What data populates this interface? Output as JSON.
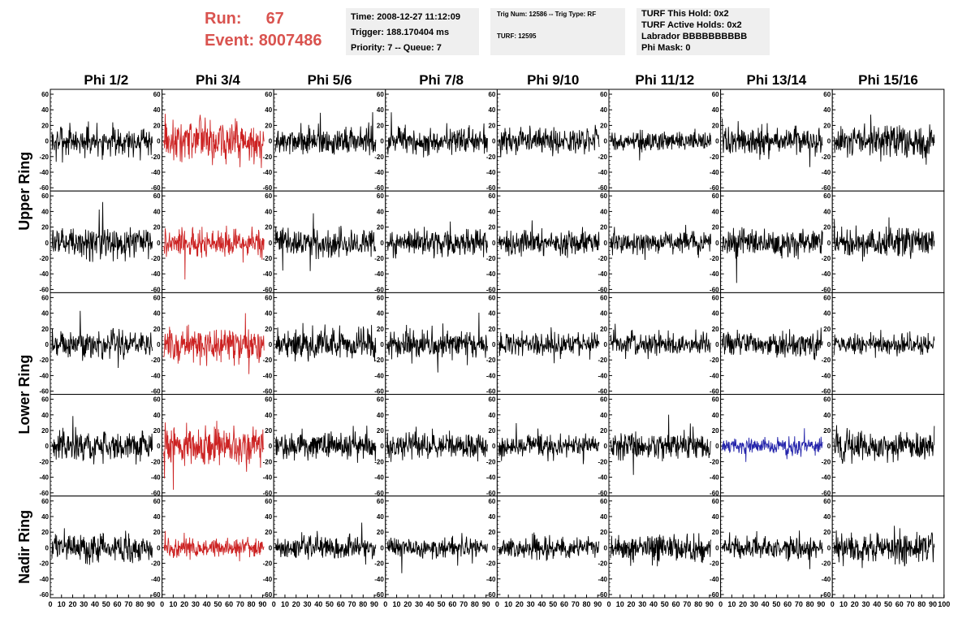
{
  "header": {
    "run_label": "Run:",
    "run_value": "67",
    "event_label": "Event:",
    "event_value": "8007486",
    "time": "Time: 2008-12-27 11:12:09",
    "trigger": "Trigger: 188.170404 ms",
    "priority": "Priority: 7 -- Queue: 7",
    "trig_num": "Trig Num: 12586 -- Trig Type: RF",
    "turf": "TURF: 12595",
    "turf_this_hold": "TURF This Hold: 0x2",
    "turf_active_holds": "TURF Active Holds: 0x2",
    "labrador": "Labrador BBBBBBBBBB",
    "phi_mask": "Phi Mask: 0"
  },
  "chart_data": {
    "type": "line",
    "columns": [
      "Phi 1/2",
      "Phi 3/4",
      "Phi 5/6",
      "Phi 7/8",
      "Phi 9/10",
      "Phi 11/12",
      "Phi 13/14",
      "Phi 15/16"
    ],
    "ring_labels": [
      {
        "text": "Upper Ring",
        "rows": [
          0,
          1
        ]
      },
      {
        "text": "Lower Ring",
        "rows": [
          2,
          3
        ]
      },
      {
        "text": "Nadir Ring",
        "rows": [
          4
        ]
      }
    ],
    "ylim": [
      -60,
      60
    ],
    "yticks": [
      -60,
      -40,
      -20,
      0,
      20,
      40,
      60
    ],
    "xlim": [
      0,
      100
    ],
    "xticks": [
      0,
      10,
      20,
      30,
      40,
      50,
      60,
      70,
      80,
      90,
      100
    ],
    "x_range": [
      0,
      90
    ],
    "colors": {
      "normal": "#000000",
      "triggered": "#cc2222",
      "highlight": "#2222aa"
    },
    "panels": [
      [
        {
          "c": "normal",
          "a": 18
        },
        {
          "c": "triggered",
          "a": 24
        },
        {
          "c": "normal",
          "a": 16
        },
        {
          "c": "normal",
          "a": 15
        },
        {
          "c": "normal",
          "a": 14
        },
        {
          "c": "normal",
          "a": 11
        },
        {
          "c": "normal",
          "a": 16
        },
        {
          "c": "normal",
          "a": 18
        }
      ],
      [
        {
          "c": "normal",
          "a": 17
        },
        {
          "c": "triggered",
          "a": 17
        },
        {
          "c": "normal",
          "a": 17
        },
        {
          "c": "normal",
          "a": 15
        },
        {
          "c": "normal",
          "a": 14
        },
        {
          "c": "normal",
          "a": 13
        },
        {
          "c": "normal",
          "a": 15
        },
        {
          "c": "normal",
          "a": 17
        }
      ],
      [
        {
          "c": "normal",
          "a": 15
        },
        {
          "c": "triggered",
          "a": 19
        },
        {
          "c": "normal",
          "a": 18
        },
        {
          "c": "normal",
          "a": 15
        },
        {
          "c": "normal",
          "a": 14
        },
        {
          "c": "normal",
          "a": 13
        },
        {
          "c": "normal",
          "a": 14
        },
        {
          "c": "normal",
          "a": 12
        }
      ],
      [
        {
          "c": "normal",
          "a": 18
        },
        {
          "c": "triggered",
          "a": 24
        },
        {
          "c": "normal",
          "a": 16
        },
        {
          "c": "normal",
          "a": 16
        },
        {
          "c": "normal",
          "a": 12
        },
        {
          "c": "normal",
          "a": 15
        },
        {
          "c": "highlight",
          "a": 10
        },
        {
          "c": "normal",
          "a": 17
        }
      ],
      [
        {
          "c": "normal",
          "a": 16
        },
        {
          "c": "triggered",
          "a": 11
        },
        {
          "c": "normal",
          "a": 14
        },
        {
          "c": "normal",
          "a": 12
        },
        {
          "c": "normal",
          "a": 12
        },
        {
          "c": "normal",
          "a": 15
        },
        {
          "c": "normal",
          "a": 14
        },
        {
          "c": "normal",
          "a": 18
        }
      ]
    ]
  }
}
